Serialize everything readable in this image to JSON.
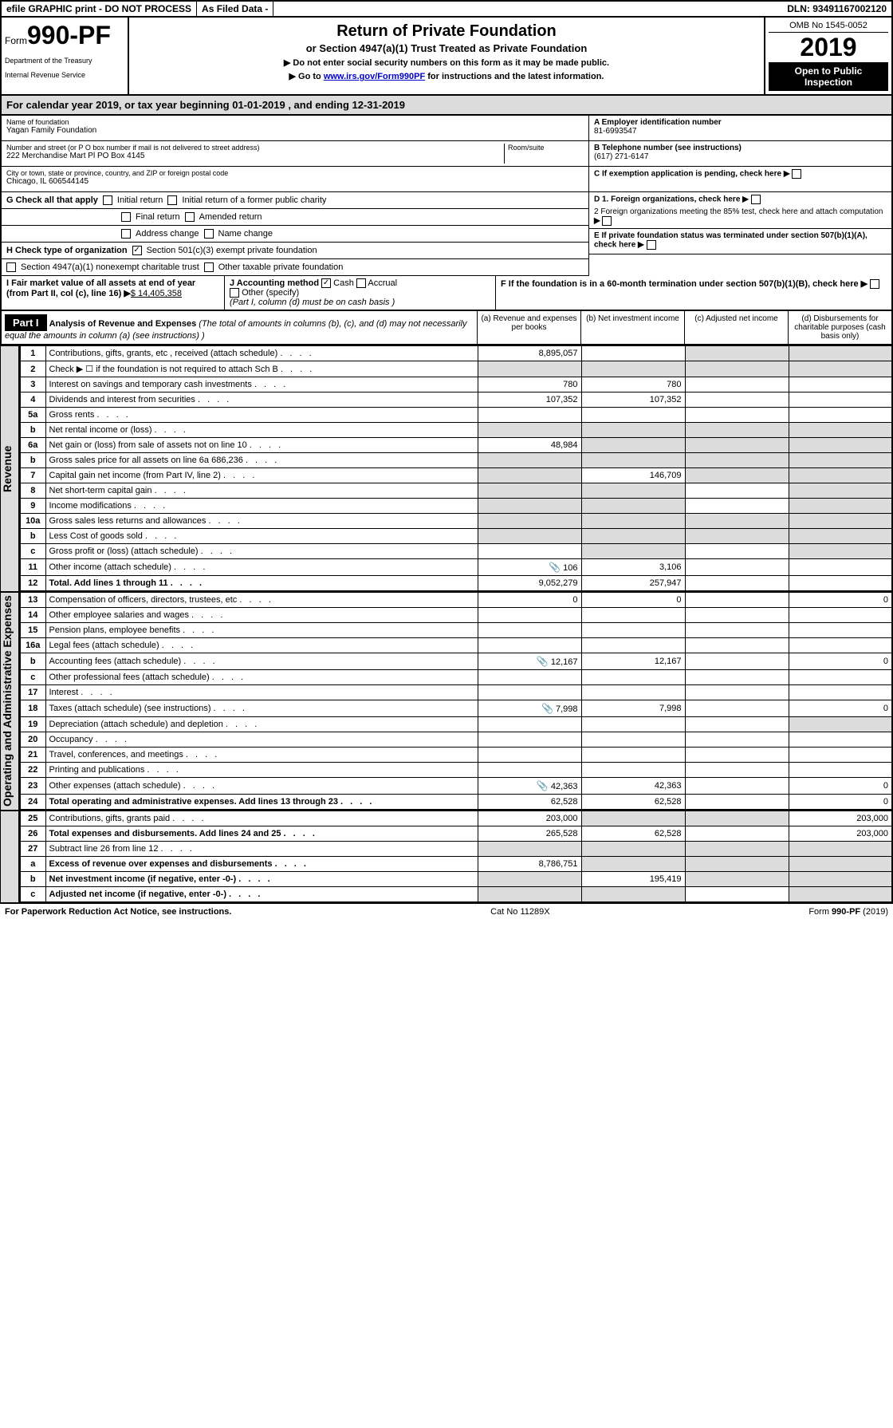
{
  "topbar": {
    "efile": "efile GRAPHIC print - DO NOT PROCESS",
    "asfiled": "As Filed Data -",
    "dln": "DLN: 93491167002120"
  },
  "header": {
    "form_label": "Form",
    "form_number": "990-PF",
    "dept1": "Department of the Treasury",
    "dept2": "Internal Revenue Service",
    "title": "Return of Private Foundation",
    "subtitle": "or Section 4947(a)(1) Trust Treated as Private Foundation",
    "note1": "▶ Do not enter social security numbers on this form as it may be made public.",
    "note2_pre": "▶ Go to ",
    "note2_link": "www.irs.gov/Form990PF",
    "note2_post": " for instructions and the latest information.",
    "omb": "OMB No 1545-0052",
    "year": "2019",
    "inspect": "Open to Public Inspection"
  },
  "calyear": "For calendar year 2019, or tax year beginning 01-01-2019            , and ending 12-31-2019",
  "foundation": {
    "name_label": "Name of foundation",
    "name": "Yagan Family Foundation",
    "addr_label": "Number and street (or P O  box number if mail is not delivered to street address)",
    "addr": "222 Merchandise Mart Pl PO Box 4145",
    "room_label": "Room/suite",
    "city_label": "City or town, state or province, country, and ZIP or foreign postal code",
    "city": "Chicago, IL  606544145",
    "ein_label": "A Employer identification number",
    "ein": "81-6993547",
    "tel_label": "B Telephone number (see instructions)",
    "tel": "(617) 271-6147",
    "c_label": "C If exemption application is pending, check here",
    "d1": "D 1. Foreign organizations, check here",
    "d2": "2 Foreign organizations meeting the 85% test, check here and attach computation",
    "e_label": "E  If private foundation status was terminated under section 507(b)(1)(A), check here",
    "f_label": "F  If the foundation is in a 60-month termination under section 507(b)(1)(B), check here"
  },
  "g": {
    "label": "G Check all that apply",
    "opts": [
      "Initial return",
      "Initial return of a former public charity",
      "Final return",
      "Amended return",
      "Address change",
      "Name change"
    ]
  },
  "h": {
    "label": "H Check type of organization",
    "opt1": "Section 501(c)(3) exempt private foundation",
    "opt2": "Section 4947(a)(1) nonexempt charitable trust",
    "opt3": "Other taxable private foundation"
  },
  "i": {
    "label": "I Fair market value of all assets at end of year (from Part II, col  (c), line 16)",
    "value": "$  14,405,358"
  },
  "j": {
    "label": "J Accounting method",
    "cash": "Cash",
    "accrual": "Accrual",
    "other": "Other (specify)",
    "note": "(Part I, column (d) must be on cash basis )"
  },
  "part1": {
    "label": "Part I",
    "title": "Analysis of Revenue and Expenses",
    "title_note": "(The total of amounts in columns (b), (c), and (d) may not necessarily equal the amounts in column (a) (see instructions) )",
    "col_a": "(a) Revenue and expenses per books",
    "col_b": "(b) Net investment income",
    "col_c": "(c) Adjusted net income",
    "col_d": "(d) Disbursements for charitable purposes (cash basis only)"
  },
  "section_labels": {
    "revenue": "Revenue",
    "expenses": "Operating and Administrative Expenses"
  },
  "rows": [
    {
      "n": "1",
      "d": "Contributions, gifts, grants, etc , received (attach schedule)",
      "a": "8,895,057",
      "b": "",
      "c": "",
      "dd": "",
      "shade_c": true,
      "shade_d": true
    },
    {
      "n": "2",
      "d": "Check ▶ ☐ if the foundation is not required to attach Sch B",
      "a": "",
      "b": "",
      "c": "",
      "dd": "",
      "shade_all": true
    },
    {
      "n": "3",
      "d": "Interest on savings and temporary cash investments",
      "a": "780",
      "b": "780",
      "c": "",
      "dd": ""
    },
    {
      "n": "4",
      "d": "Dividends and interest from securities",
      "a": "107,352",
      "b": "107,352",
      "c": "",
      "dd": ""
    },
    {
      "n": "5a",
      "d": "Gross rents",
      "a": "",
      "b": "",
      "c": "",
      "dd": ""
    },
    {
      "n": "b",
      "d": "Net rental income or (loss)",
      "a": "",
      "b": "",
      "c": "",
      "dd": "",
      "shade_all": true
    },
    {
      "n": "6a",
      "d": "Net gain or (loss) from sale of assets not on line 10",
      "a": "48,984",
      "b": "",
      "c": "",
      "dd": "",
      "shade_b": true,
      "shade_c": true,
      "shade_d": true
    },
    {
      "n": "b",
      "d": "Gross sales price for all assets on line 6a          686,236",
      "a": "",
      "b": "",
      "c": "",
      "dd": "",
      "shade_all": true
    },
    {
      "n": "7",
      "d": "Capital gain net income (from Part IV, line 2)",
      "a": "",
      "b": "146,709",
      "c": "",
      "dd": "",
      "shade_a": true,
      "shade_c": true,
      "shade_d": true
    },
    {
      "n": "8",
      "d": "Net short-term capital gain",
      "a": "",
      "b": "",
      "c": "",
      "dd": "",
      "shade_a": true,
      "shade_b": true,
      "shade_d": true
    },
    {
      "n": "9",
      "d": "Income modifications",
      "a": "",
      "b": "",
      "c": "",
      "dd": "",
      "shade_a": true,
      "shade_b": true,
      "shade_d": true
    },
    {
      "n": "10a",
      "d": "Gross sales less returns and allowances",
      "a": "",
      "b": "",
      "c": "",
      "dd": "",
      "shade_all": true
    },
    {
      "n": "b",
      "d": "Less  Cost of goods sold",
      "a": "",
      "b": "",
      "c": "",
      "dd": "",
      "shade_all": true
    },
    {
      "n": "c",
      "d": "Gross profit or (loss) (attach schedule)",
      "a": "",
      "b": "",
      "c": "",
      "dd": "",
      "shade_b": true,
      "shade_d": true
    },
    {
      "n": "11",
      "d": "Other income (attach schedule)",
      "a": "106",
      "b": "3,106",
      "c": "",
      "dd": "",
      "icon": true
    },
    {
      "n": "12",
      "d": "Total. Add lines 1 through 11",
      "a": "9,052,279",
      "b": "257,947",
      "c": "",
      "dd": "",
      "bold": true
    },
    {
      "n": "13",
      "d": "Compensation of officers, directors, trustees, etc",
      "a": "0",
      "b": "0",
      "c": "",
      "dd": "0"
    },
    {
      "n": "14",
      "d": "Other employee salaries and wages",
      "a": "",
      "b": "",
      "c": "",
      "dd": ""
    },
    {
      "n": "15",
      "d": "Pension plans, employee benefits",
      "a": "",
      "b": "",
      "c": "",
      "dd": ""
    },
    {
      "n": "16a",
      "d": "Legal fees (attach schedule)",
      "a": "",
      "b": "",
      "c": "",
      "dd": ""
    },
    {
      "n": "b",
      "d": "Accounting fees (attach schedule)",
      "a": "12,167",
      "b": "12,167",
      "c": "",
      "dd": "0",
      "icon": true
    },
    {
      "n": "c",
      "d": "Other professional fees (attach schedule)",
      "a": "",
      "b": "",
      "c": "",
      "dd": ""
    },
    {
      "n": "17",
      "d": "Interest",
      "a": "",
      "b": "",
      "c": "",
      "dd": ""
    },
    {
      "n": "18",
      "d": "Taxes (attach schedule) (see instructions)",
      "a": "7,998",
      "b": "7,998",
      "c": "",
      "dd": "0",
      "icon": true
    },
    {
      "n": "19",
      "d": "Depreciation (attach schedule) and depletion",
      "a": "",
      "b": "",
      "c": "",
      "dd": "",
      "shade_d": true
    },
    {
      "n": "20",
      "d": "Occupancy",
      "a": "",
      "b": "",
      "c": "",
      "dd": ""
    },
    {
      "n": "21",
      "d": "Travel, conferences, and meetings",
      "a": "",
      "b": "",
      "c": "",
      "dd": ""
    },
    {
      "n": "22",
      "d": "Printing and publications",
      "a": "",
      "b": "",
      "c": "",
      "dd": ""
    },
    {
      "n": "23",
      "d": "Other expenses (attach schedule)",
      "a": "42,363",
      "b": "42,363",
      "c": "",
      "dd": "0",
      "icon": true
    },
    {
      "n": "24",
      "d": "Total operating and administrative expenses. Add lines 13 through 23",
      "a": "62,528",
      "b": "62,528",
      "c": "",
      "dd": "0",
      "bold": true
    },
    {
      "n": "25",
      "d": "Contributions, gifts, grants paid",
      "a": "203,000",
      "b": "",
      "c": "",
      "dd": "203,000",
      "shade_b": true,
      "shade_c": true
    },
    {
      "n": "26",
      "d": "Total expenses and disbursements. Add lines 24 and 25",
      "a": "265,528",
      "b": "62,528",
      "c": "",
      "dd": "203,000",
      "bold": true
    },
    {
      "n": "27",
      "d": "Subtract line 26 from line 12",
      "a": "",
      "b": "",
      "c": "",
      "dd": "",
      "shade_all": true
    },
    {
      "n": "a",
      "d": "Excess of revenue over expenses and disbursements",
      "a": "8,786,751",
      "b": "",
      "c": "",
      "dd": "",
      "bold": true,
      "shade_b": true,
      "shade_c": true,
      "shade_d": true
    },
    {
      "n": "b",
      "d": "Net investment income (if negative, enter -0-)",
      "a": "",
      "b": "195,419",
      "c": "",
      "dd": "",
      "bold": true,
      "shade_a": true,
      "shade_c": true,
      "shade_d": true
    },
    {
      "n": "c",
      "d": "Adjusted net income (if negative, enter -0-)",
      "a": "",
      "b": "",
      "c": "",
      "dd": "",
      "bold": true,
      "shade_a": true,
      "shade_b": true,
      "shade_d": true
    }
  ],
  "footer": {
    "left": "For Paperwork Reduction Act Notice, see instructions.",
    "mid": "Cat  No  11289X",
    "right": "Form 990-PF (2019)"
  }
}
